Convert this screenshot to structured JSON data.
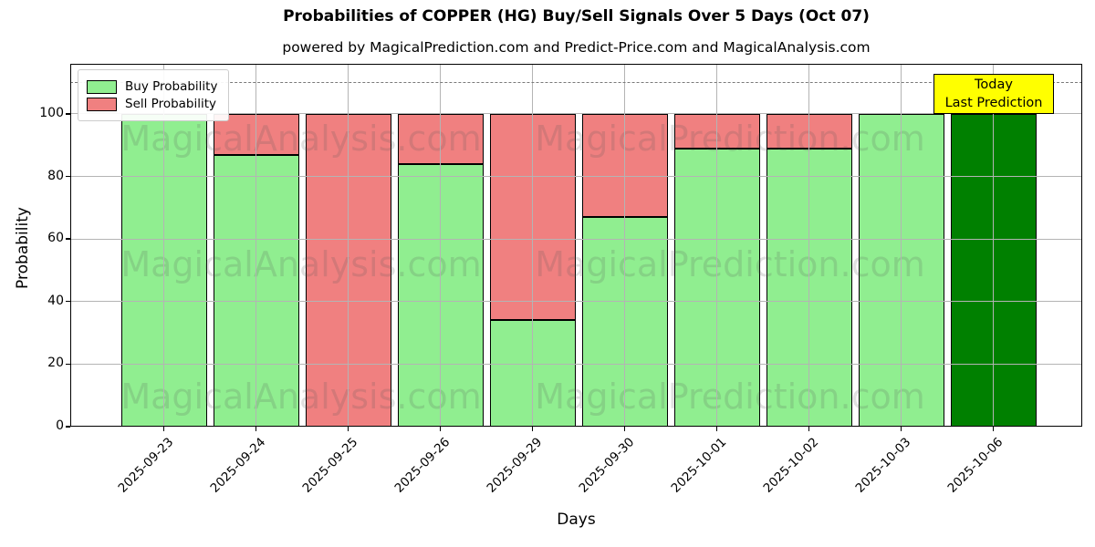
{
  "title": "Probabilities of COPPER (HG) Buy/Sell Signals Over 5 Days (Oct 07)",
  "subtitle": "powered by MagicalPrediction.com and Predict-Price.com and MagicalAnalysis.com",
  "watermarks": {
    "left": "MagicalAnalysis.com",
    "right": "MagicalPrediction.com"
  },
  "annotation": {
    "line1": "Today",
    "line2": "Last Prediction",
    "bg": "#FFFF00"
  },
  "legend": [
    {
      "label": "Buy Probability",
      "color": "#90EE90"
    },
    {
      "label": "Sell Probability",
      "color": "#F08080"
    }
  ],
  "chart_data": {
    "type": "bar",
    "stacked": true,
    "title": "Probabilities of COPPER (HG) Buy/Sell Signals Over 5 Days (Oct 07)",
    "xlabel": "Days",
    "ylabel": "Probability",
    "ylim": [
      0,
      116
    ],
    "yticks": [
      0,
      20,
      40,
      60,
      80,
      100
    ],
    "grid": true,
    "legend_position": "upper left",
    "dashed_line_y": 110,
    "categories": [
      "2025-09-23",
      "2025-09-24",
      "2025-09-25",
      "2025-09-26",
      "2025-09-29",
      "2025-09-30",
      "2025-10-01",
      "2025-10-02",
      "2025-10-03",
      "2025-10-06"
    ],
    "series": [
      {
        "name": "Buy Probability",
        "color": "#90EE90",
        "values": [
          100,
          87,
          0,
          84,
          34,
          67,
          89,
          89,
          100,
          100
        ]
      },
      {
        "name": "Sell Probability",
        "color": "#F08080",
        "values": [
          0,
          13,
          100,
          16,
          66,
          33,
          11,
          11,
          0,
          0
        ]
      }
    ],
    "today_bar": {
      "category": "2025-10-06",
      "color": "#008000"
    },
    "bar_edge_color": "#000000"
  }
}
